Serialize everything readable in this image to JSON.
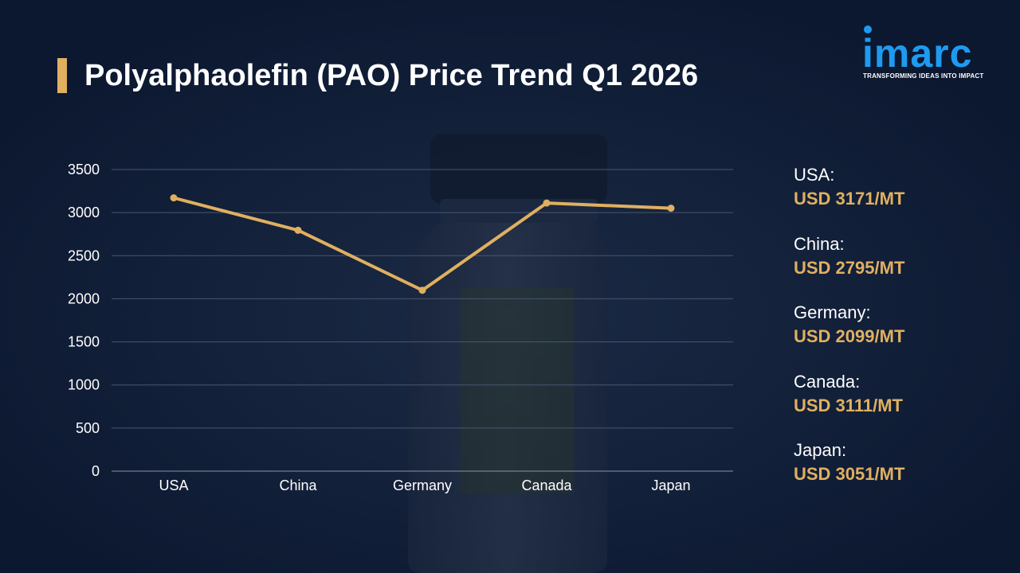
{
  "page": {
    "title": "Polyalphaolefin (PAO) Price Trend Q1 2026"
  },
  "logo": {
    "word": "imarc",
    "tagline": "TRANSFORMING IDEAS INTO IMPACT"
  },
  "colors": {
    "background": "#0d1a33",
    "accent": "#e0b060",
    "line": "#e0b060",
    "logo_blue": "#1e9bf0",
    "grid": "#4a5670",
    "text": "#ffffff"
  },
  "chart_data": {
    "type": "line",
    "categories": [
      "USA",
      "China",
      "Germany",
      "Canada",
      "Japan"
    ],
    "series": [
      {
        "values": [
          3171,
          2795,
          2099,
          3111,
          3051
        ]
      }
    ],
    "ylim": [
      0,
      3500
    ],
    "yticks": [
      0,
      500,
      1000,
      1500,
      2000,
      2500,
      3000,
      3500
    ],
    "grid": true,
    "legend": "none"
  },
  "summary": [
    {
      "country": "USA:",
      "price": "USD 3171/MT"
    },
    {
      "country": "China:",
      "price": "USD 2795/MT"
    },
    {
      "country": "Germany:",
      "price": "USD 2099/MT"
    },
    {
      "country": "Canada:",
      "price": "USD 3111/MT"
    },
    {
      "country": "Japan:",
      "price": "USD 3051/MT"
    }
  ]
}
